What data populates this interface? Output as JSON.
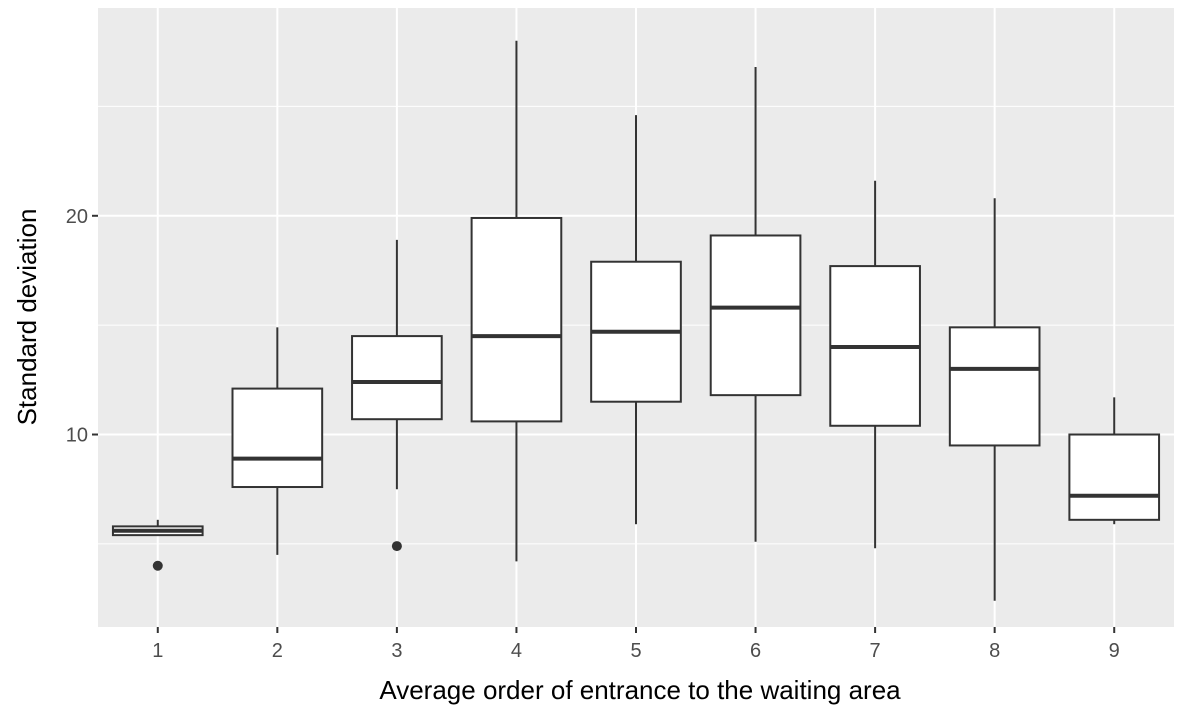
{
  "chart_data": {
    "type": "boxplot",
    "title": "",
    "xlabel": "Average order of entrance to the waiting area",
    "ylabel": "Standard deviation",
    "ylim": [
      1.2,
      29.5
    ],
    "yticks": [
      10,
      20
    ],
    "grid": true,
    "categories": [
      "1",
      "2",
      "3",
      "4",
      "5",
      "6",
      "7",
      "8",
      "9"
    ],
    "boxes": [
      {
        "category": "1",
        "whisker_low": 5.4,
        "q1": 5.4,
        "median": 5.6,
        "q3": 5.8,
        "whisker_high": 6.1,
        "outliers": [
          4.0
        ]
      },
      {
        "category": "2",
        "whisker_low": 4.5,
        "q1": 7.6,
        "median": 8.9,
        "q3": 12.1,
        "whisker_high": 14.9,
        "outliers": []
      },
      {
        "category": "3",
        "whisker_low": 7.5,
        "q1": 10.7,
        "median": 12.4,
        "q3": 14.5,
        "whisker_high": 18.9,
        "outliers": [
          4.9
        ]
      },
      {
        "category": "4",
        "whisker_low": 4.2,
        "q1": 10.6,
        "median": 14.5,
        "q3": 19.9,
        "whisker_high": 28.0,
        "outliers": []
      },
      {
        "category": "5",
        "whisker_low": 5.9,
        "q1": 11.5,
        "median": 14.7,
        "q3": 17.9,
        "whisker_high": 24.6,
        "outliers": []
      },
      {
        "category": "6",
        "whisker_low": 5.1,
        "q1": 11.8,
        "median": 15.8,
        "q3": 19.1,
        "whisker_high": 26.8,
        "outliers": []
      },
      {
        "category": "7",
        "whisker_low": 4.8,
        "q1": 10.4,
        "median": 14.0,
        "q3": 17.7,
        "whisker_high": 21.6,
        "outliers": []
      },
      {
        "category": "8",
        "whisker_low": 2.4,
        "q1": 9.5,
        "median": 13.0,
        "q3": 14.9,
        "whisker_high": 20.8,
        "outliers": []
      },
      {
        "category": "9",
        "whisker_low": 5.9,
        "q1": 6.1,
        "median": 7.2,
        "q3": 10.0,
        "whisker_high": 11.7,
        "outliers": []
      }
    ],
    "colors": {
      "panel_bg": "#ebebeb",
      "grid": "#ffffff",
      "box_fill": "#ffffff",
      "box_stroke": "#333333",
      "tick_text": "#4d4d4d",
      "tick_mark": "#333333",
      "axis_title": "#000000"
    }
  }
}
